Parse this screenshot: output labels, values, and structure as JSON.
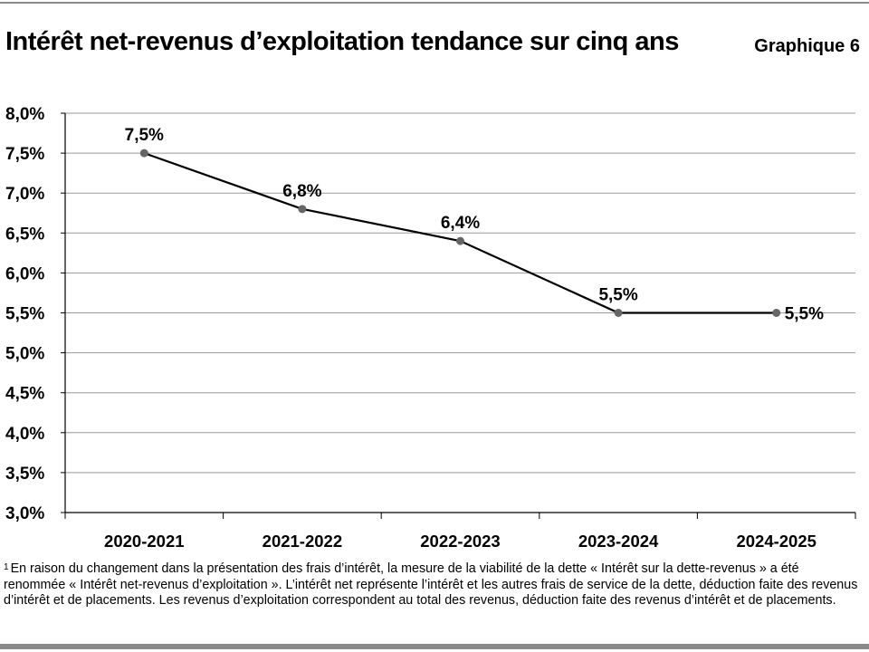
{
  "header": {
    "title": "Intérêt net-revenus d’exploitation tendance sur cinq ans",
    "figure_label": "Graphique 6"
  },
  "chart_data": {
    "type": "line",
    "title": "Intérêt net-revenus d’exploitation tendance sur cinq ans",
    "categories": [
      "2020-2021",
      "2021-2022",
      "2022-2023",
      "2023-2024",
      "2024-2025"
    ],
    "series": [
      {
        "name": "Intérêt net-revenus d’exploitation",
        "values": [
          7.5,
          6.8,
          6.4,
          5.5,
          5.5
        ]
      }
    ],
    "data_labels": [
      "7,5%",
      "6,8%",
      "6,4%",
      "5,5%",
      "5,5%"
    ],
    "y_ticks": [
      3.0,
      3.5,
      4.0,
      4.5,
      5.0,
      5.5,
      6.0,
      6.5,
      7.0,
      7.5,
      8.0
    ],
    "y_tick_labels": [
      "3,0%",
      "3,5%",
      "4,0%",
      "4,5%",
      "5,0%",
      "5,5%",
      "6,0%",
      "6,5%",
      "7,0%",
      "7,5%",
      "8,0%"
    ],
    "ylim": [
      3.0,
      8.0
    ],
    "xlabel": "",
    "ylabel": "",
    "grid": true,
    "line_color": "#000000",
    "marker_color": "#666666",
    "gridline_color": "#999999"
  },
  "footnote": {
    "marker": "1",
    "text": "En raison du changement dans la présentation des frais d’intérêt, la mesure de la viabilité de la dette « Intérêt sur la dette-revenus » a été renommée « Intérêt net-revenus d’exploitation ». L’intérêt net représente l’intérêt et les autres frais de service de la dette, déduction faite des revenus d’intérêt et de placements. Les revenus d’exploitation correspondent au total des revenus, déduction faite des revenus d’intérêt et de placements."
  }
}
